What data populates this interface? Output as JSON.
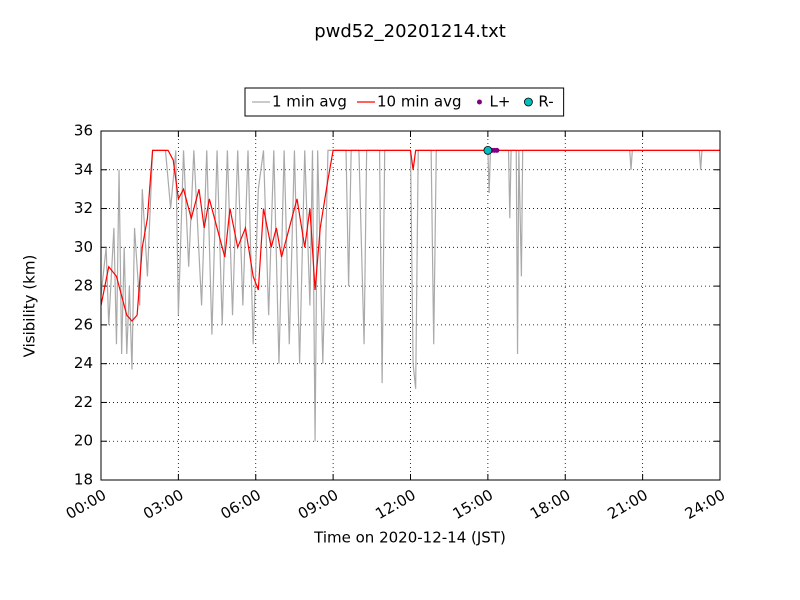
{
  "chart_data": {
    "type": "line",
    "title": "pwd52_20201214.txt",
    "x_label": "Time on 2020-12-14 (JST)",
    "y_label": "Visibility (km)",
    "xlim": [
      0,
      24
    ],
    "ylim": [
      18,
      36
    ],
    "xticks": [
      {
        "value": 0,
        "label": "00:00"
      },
      {
        "value": 3,
        "label": "03:00"
      },
      {
        "value": 6,
        "label": "06:00"
      },
      {
        "value": 9,
        "label": "09:00"
      },
      {
        "value": 12,
        "label": "12:00"
      },
      {
        "value": 15,
        "label": "15:00"
      },
      {
        "value": 18,
        "label": "18:00"
      },
      {
        "value": 21,
        "label": "21:00"
      },
      {
        "value": 24,
        "label": "24:00"
      }
    ],
    "yticks": [
      18,
      20,
      22,
      24,
      26,
      28,
      30,
      32,
      34,
      36
    ],
    "grid": true,
    "legend": "top",
    "series": [
      {
        "name": "1 min avg",
        "color": "#aaaaaa",
        "marker": false,
        "x": [
          0,
          0.2,
          0.3,
          0.5,
          0.6,
          0.7,
          0.8,
          0.9,
          1.0,
          1.1,
          1.2,
          1.3,
          1.5,
          1.6,
          1.8,
          2.0,
          2.5,
          2.7,
          2.9,
          3.0,
          3.2,
          3.4,
          3.6,
          3.9,
          4.1,
          4.3,
          4.5,
          4.7,
          4.9,
          5.1,
          5.3,
          5.5,
          5.7,
          5.9,
          6.1,
          6.3,
          6.5,
          6.7,
          6.9,
          7.1,
          7.3,
          7.5,
          7.7,
          7.9,
          8.1,
          8.2,
          8.3,
          8.4,
          8.6,
          8.8,
          9.0,
          9.5,
          9.6,
          9.7,
          10.0,
          10.2,
          10.3,
          10.8,
          10.9,
          11.0,
          12.0,
          12.1,
          12.2,
          12.3,
          12.8,
          12.9,
          13.0,
          15.0,
          15.05,
          15.1,
          15.8,
          15.85,
          15.9,
          16.1,
          16.15,
          16.2,
          16.3,
          16.35,
          20.5,
          20.55,
          20.6,
          23.2,
          23.25,
          23.3,
          24
        ],
        "values": [
          27.5,
          30,
          26,
          31,
          25,
          34,
          24.5,
          30,
          24.5,
          28,
          23.7,
          31,
          27,
          33,
          28.5,
          35,
          35,
          32,
          35,
          26.5,
          35,
          29,
          35,
          27,
          35,
          25.5,
          35,
          26,
          35,
          26.5,
          35,
          27,
          35,
          25,
          33,
          35,
          26.5,
          35,
          24,
          35,
          25,
          35,
          24,
          35,
          27,
          35,
          20,
          35,
          24,
          35,
          35,
          35,
          28,
          35,
          35,
          25,
          35,
          35,
          23,
          35,
          35,
          24,
          22.7,
          35,
          35,
          25,
          35,
          35,
          32.8,
          35,
          35,
          31.5,
          35,
          35,
          24.5,
          35,
          28.5,
          35,
          35,
          34,
          35,
          35,
          34,
          35,
          35
        ]
      },
      {
        "name": "10 min avg",
        "color": "#ff0000",
        "marker": false,
        "x": [
          0,
          0.3,
          0.6,
          0.8,
          1.0,
          1.2,
          1.4,
          1.6,
          1.8,
          2.0,
          2.3,
          2.6,
          2.8,
          3.0,
          3.2,
          3.5,
          3.8,
          4.0,
          4.2,
          4.5,
          4.8,
          5.0,
          5.3,
          5.6,
          5.9,
          6.1,
          6.3,
          6.6,
          6.8,
          7.0,
          7.3,
          7.6,
          7.9,
          8.1,
          8.3,
          8.5,
          8.8,
          9.0,
          12.0,
          12.1,
          12.2,
          24
        ],
        "values": [
          27,
          29,
          28.5,
          27.5,
          26.5,
          26.2,
          26.5,
          30,
          31.5,
          35,
          35,
          35,
          34.5,
          32.5,
          33,
          31.5,
          33,
          31,
          32.5,
          31,
          29.5,
          32,
          30,
          31,
          28.5,
          27.8,
          32,
          30,
          31,
          29.5,
          31,
          32.5,
          30,
          32,
          27.8,
          31,
          33.5,
          35,
          35,
          34,
          35,
          35
        ]
      },
      {
        "name": "L+",
        "color": "#800080",
        "marker": true,
        "size": 2.5,
        "x": [
          15.05,
          15.15,
          15.25,
          15.35
        ],
        "values": [
          35,
          35,
          35,
          35
        ]
      },
      {
        "name": "R-",
        "color": "#00bfbf",
        "marker": true,
        "size": 4,
        "x": [
          15.0
        ],
        "values": [
          35
        ]
      }
    ]
  }
}
